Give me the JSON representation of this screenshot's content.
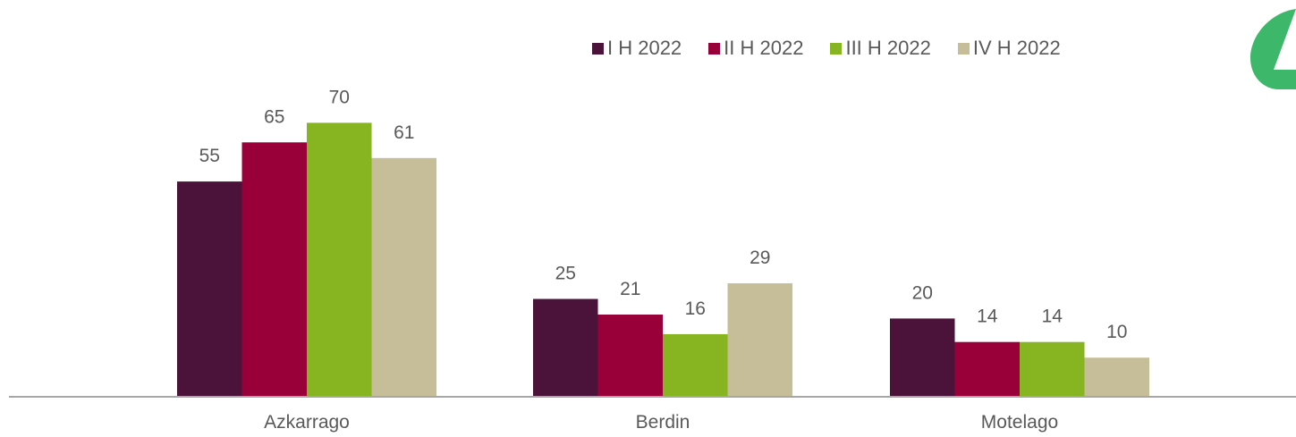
{
  "chart_data": {
    "type": "bar",
    "categories": [
      "Azkarrago",
      "Berdin",
      "Motelago"
    ],
    "series": [
      {
        "name": "I H 2022",
        "color": "#4B133A",
        "values": [
          55,
          25,
          20
        ]
      },
      {
        "name": "II H 2022",
        "color": "#990039",
        "values": [
          65,
          21,
          14
        ]
      },
      {
        "name": "III H 2022",
        "color": "#86B521",
        "values": [
          70,
          16,
          14
        ]
      },
      {
        "name": "IV H 2022",
        "color": "#C6BE98",
        "values": [
          61,
          29,
          10
        ]
      }
    ],
    "title": "",
    "xlabel": "",
    "ylabel": "",
    "ylim": [
      0,
      75
    ],
    "grid": false,
    "legend": "top-right",
    "data_labels": true
  },
  "colors": {
    "axis": "#A6A6A6",
    "label_text": "#595959",
    "corner_badge": "#3DB86A"
  },
  "icons": {
    "corner_badge": "green-triangle-badge-icon"
  }
}
